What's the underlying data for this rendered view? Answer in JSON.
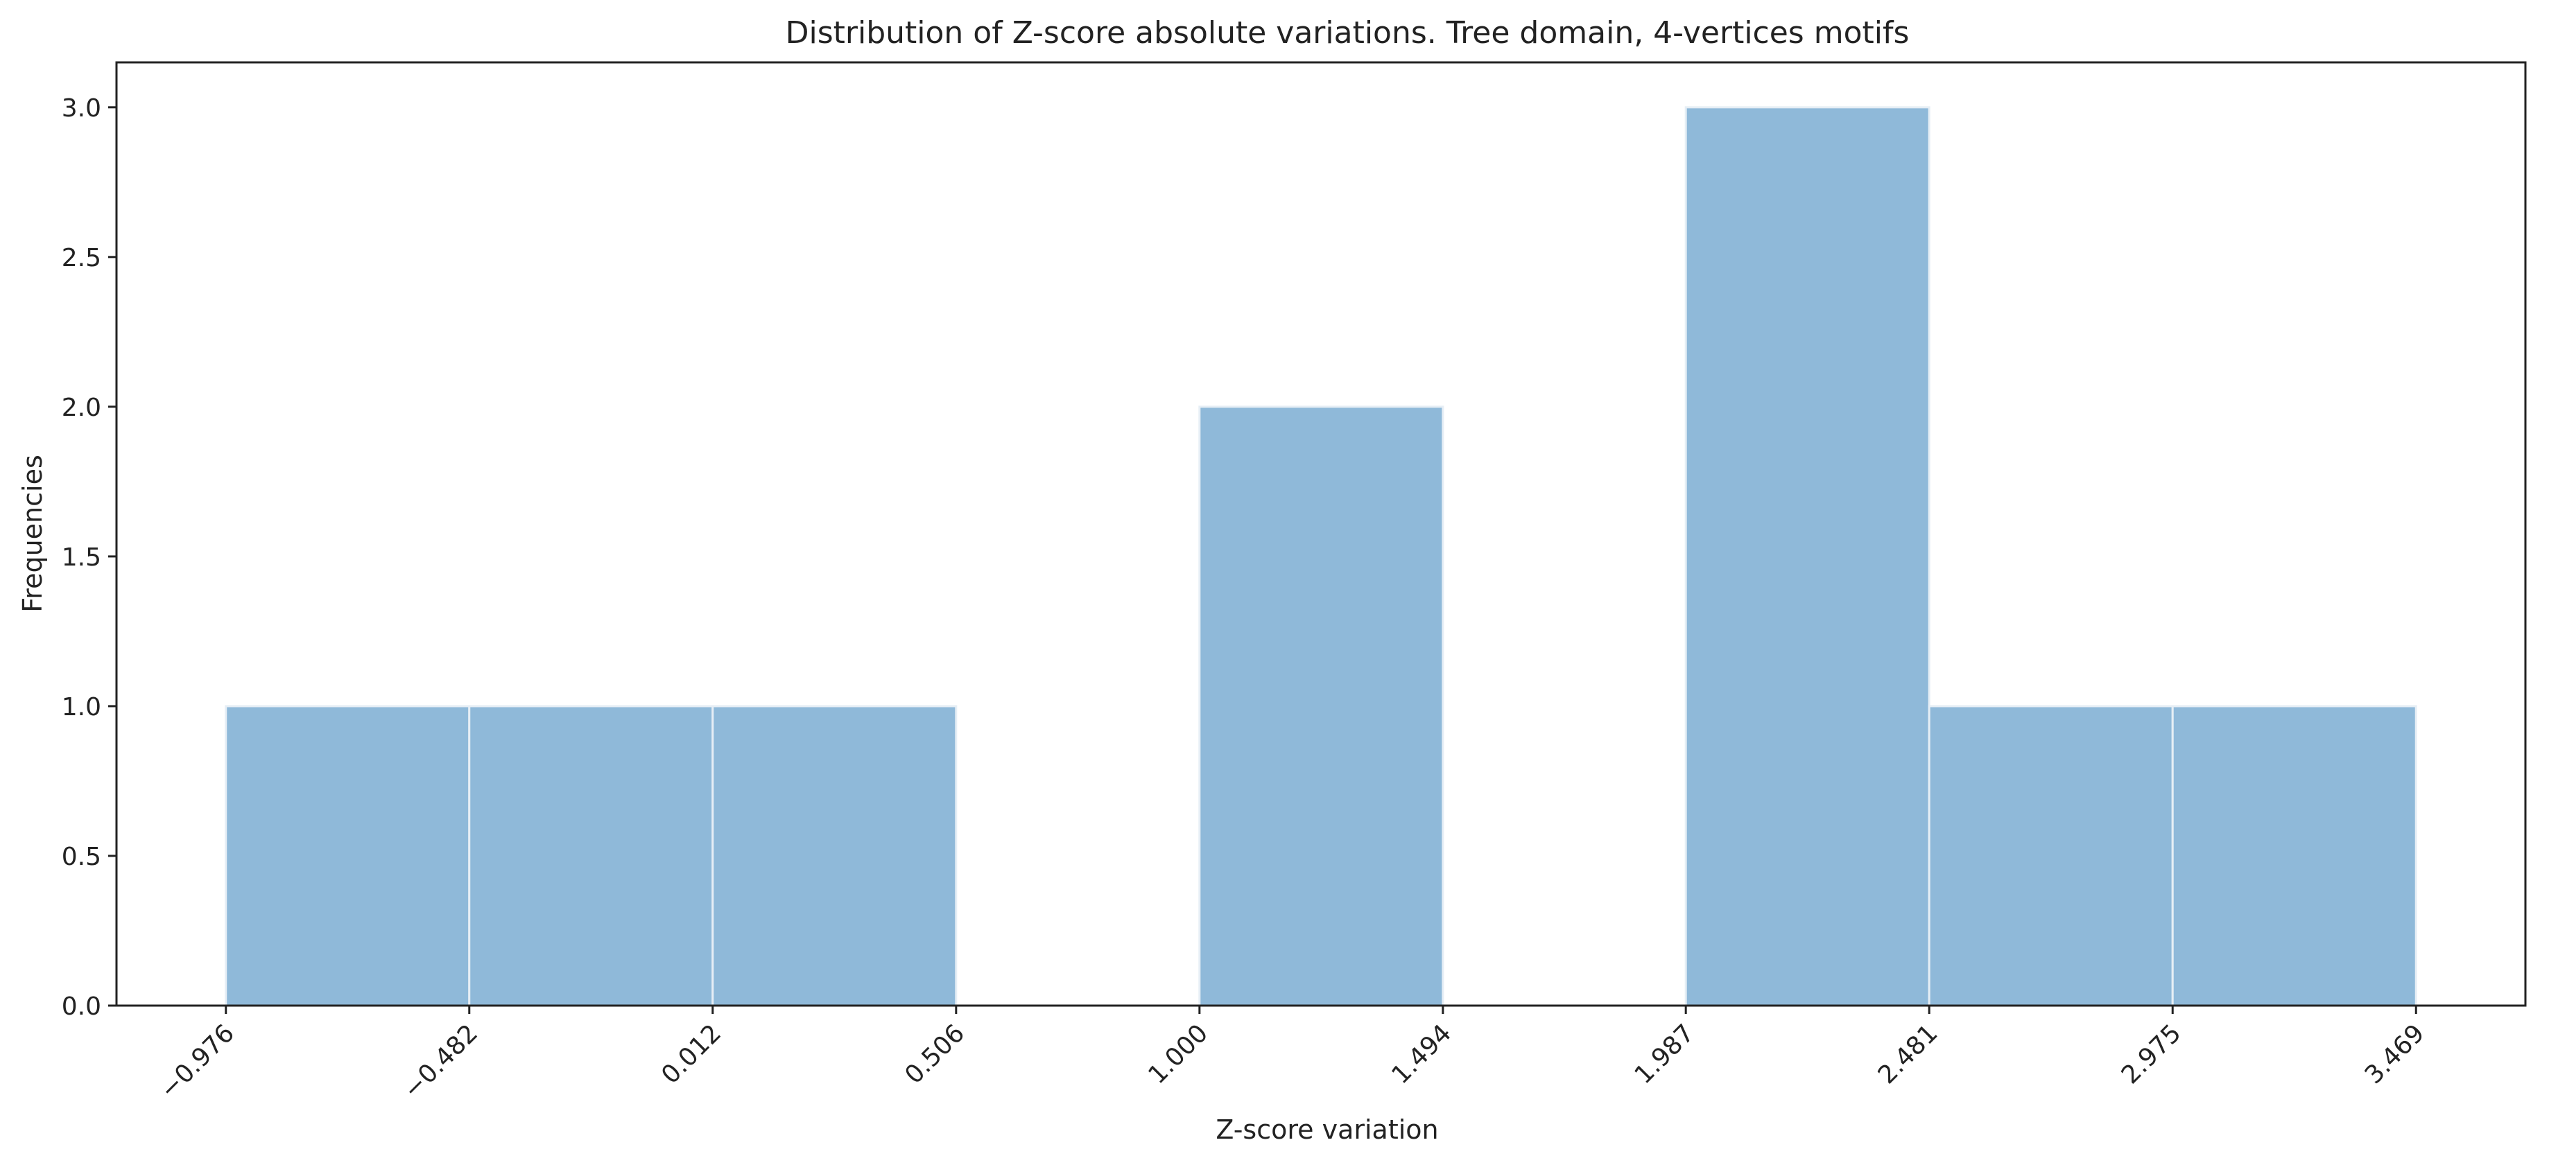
{
  "chart_data": {
    "type": "bar",
    "title": "Distribution of Z-score absolute variations. Tree domain, 4-vertices motifs",
    "xlabel": "Z-score variation",
    "ylabel": "Frequencies",
    "bin_edges": [
      -0.976,
      -0.482,
      0.012,
      0.506,
      1.0,
      1.494,
      1.987,
      2.481,
      2.975,
      3.469
    ],
    "counts": [
      1,
      1,
      1,
      0,
      2,
      0,
      3,
      1,
      1
    ],
    "xtick_labels": [
      "−0.976",
      "−0.482",
      "0.012",
      "0.506",
      "1.000",
      "1.494",
      "1.987",
      "2.481",
      "2.975",
      "3.469"
    ],
    "ytick_values": [
      0.0,
      0.5,
      1.0,
      1.5,
      2.0,
      2.5,
      3.0
    ],
    "ytick_labels": [
      "0.0",
      "0.5",
      "1.0",
      "1.5",
      "2.0",
      "2.5",
      "3.0"
    ],
    "ylim": [
      0,
      3.15
    ],
    "xlim": [
      -1.198,
      3.691
    ],
    "grid": false,
    "colors": {
      "bar_fill": "#8fb9d9",
      "bar_edge": "#e6eef5",
      "axis": "#222222"
    }
  }
}
